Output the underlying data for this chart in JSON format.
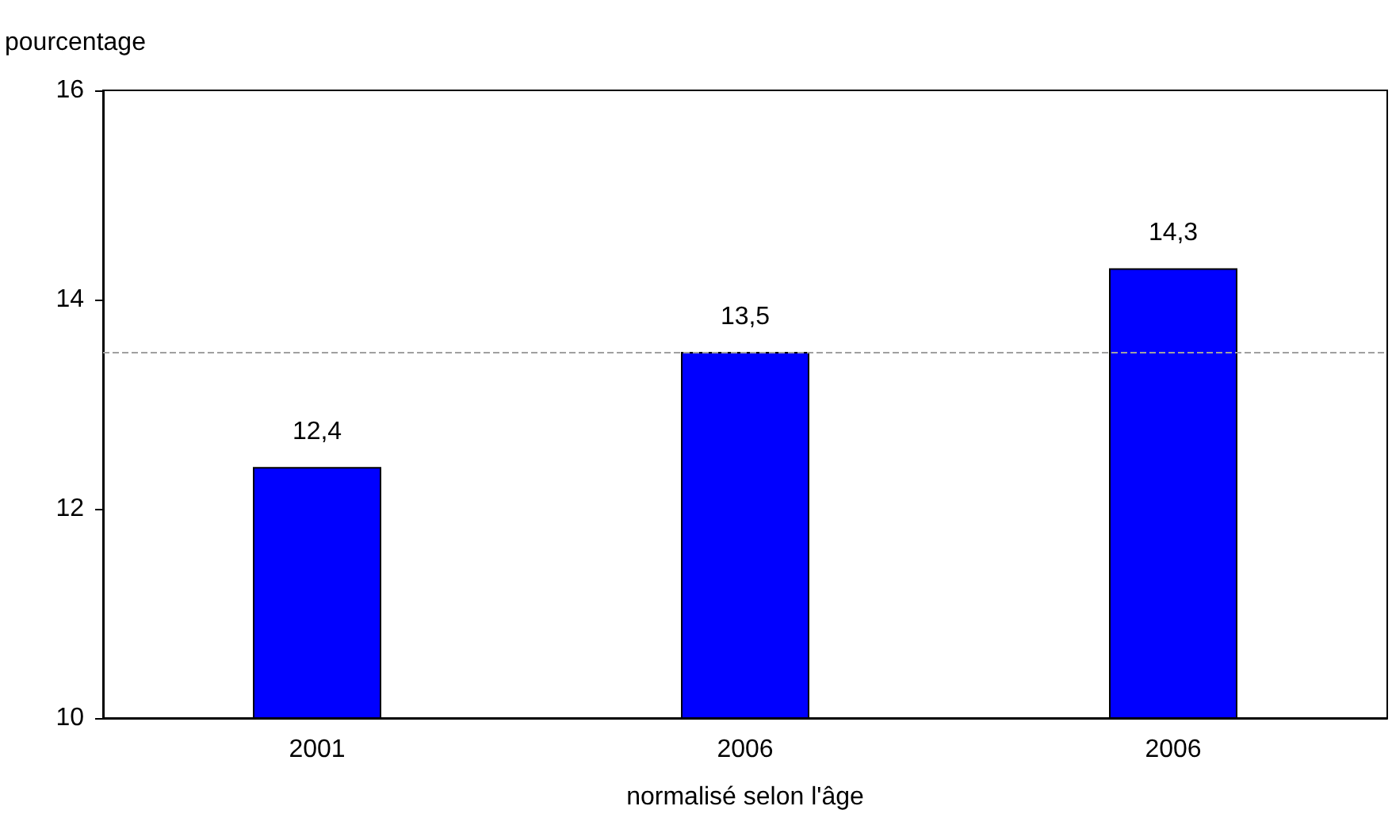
{
  "chart_data": {
    "type": "bar",
    "ylabel": "pourcentage",
    "xlabel": "normalisé selon l'âge",
    "categories": [
      "2001",
      "2006",
      "2006"
    ],
    "values": [
      12.4,
      13.5,
      14.3
    ],
    "value_labels": [
      "12,4",
      "13,5",
      "14,3"
    ],
    "color": "#0000ff",
    "ylim": [
      10,
      16
    ],
    "yticks": [
      10,
      12,
      14,
      16
    ],
    "ref_lines": [
      {
        "axis": "y",
        "value": 13.5,
        "color": "#a0a0a0",
        "line_style": "dashed"
      }
    ]
  }
}
